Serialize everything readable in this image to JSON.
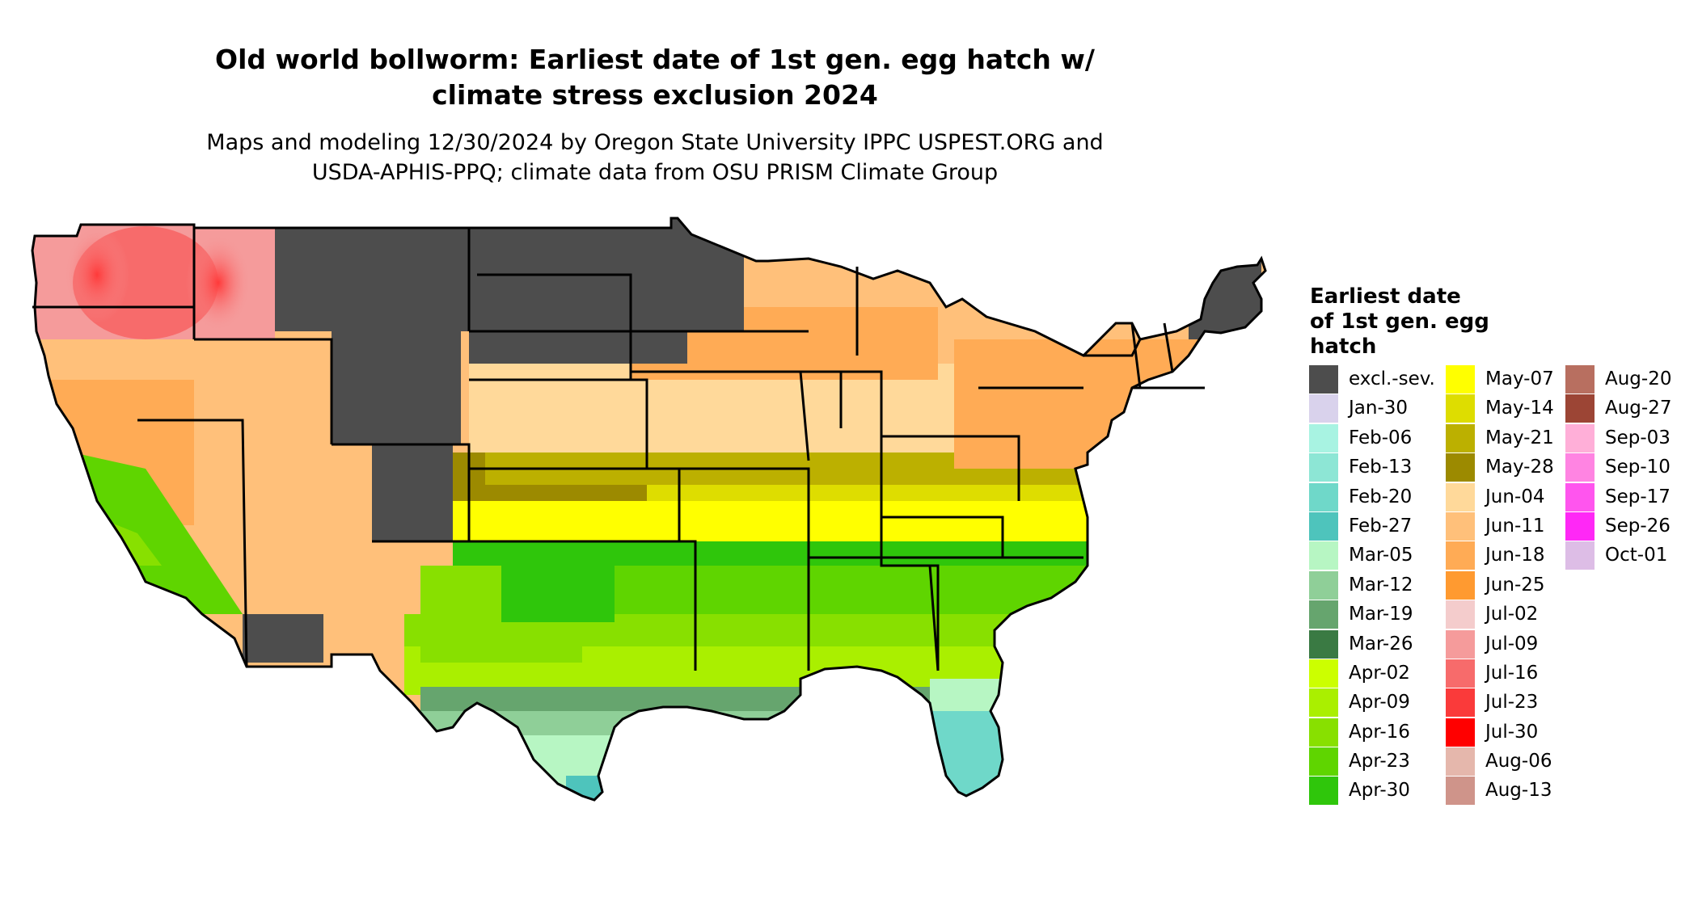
{
  "title_line1": "Old world bollworm: Earliest date of 1st gen. egg hatch w/",
  "title_line2": "climate stress exclusion 2024",
  "subtitle_line1": "Maps and modeling 12/30/2024 by Oregon State University IPPC USPEST.ORG and",
  "subtitle_line2": "USDA-APHIS-PPQ; climate data from OSU PRISM Climate Group",
  "legend": {
    "title_line1": "Earliest date",
    "title_line2": "of 1st gen. egg",
    "title_line3": "hatch",
    "columns": [
      [
        {
          "label": "excl.-sev.",
          "color": "#4d4d4d"
        },
        {
          "label": "Jan-30",
          "color": "#d9d2ec"
        },
        {
          "label": "Feb-06",
          "color": "#a8f3e2"
        },
        {
          "label": "Feb-13",
          "color": "#8de6d5"
        },
        {
          "label": "Feb-20",
          "color": "#6fd8c9"
        },
        {
          "label": "Feb-27",
          "color": "#4ec4bc"
        },
        {
          "label": "Mar-05",
          "color": "#b7f6c3"
        },
        {
          "label": "Mar-12",
          "color": "#8fcf98"
        },
        {
          "label": "Mar-19",
          "color": "#66a56e"
        },
        {
          "label": "Mar-26",
          "color": "#3a7a43"
        },
        {
          "label": "Apr-02",
          "color": "#ccff00"
        },
        {
          "label": "Apr-09",
          "color": "#aaef00"
        },
        {
          "label": "Apr-16",
          "color": "#88e000"
        },
        {
          "label": "Apr-23",
          "color": "#5fd500"
        },
        {
          "label": "Apr-30",
          "color": "#2fc60b"
        }
      ],
      [
        {
          "label": "May-07",
          "color": "#ffff00"
        },
        {
          "label": "May-14",
          "color": "#dedd00"
        },
        {
          "label": "May-21",
          "color": "#bcb000"
        },
        {
          "label": "May-28",
          "color": "#9c8a00"
        },
        {
          "label": "Jun-04",
          "color": "#ffd99a"
        },
        {
          "label": "Jun-11",
          "color": "#ffc07a"
        },
        {
          "label": "Jun-18",
          "color": "#ffab55"
        },
        {
          "label": "Jun-25",
          "color": "#ff9a30"
        },
        {
          "label": "Jul-02",
          "color": "#f4cccc"
        },
        {
          "label": "Jul-09",
          "color": "#f59b9b"
        },
        {
          "label": "Jul-16",
          "color": "#f76b6b"
        },
        {
          "label": "Jul-23",
          "color": "#fa3a3a"
        },
        {
          "label": "Jul-30",
          "color": "#ff0000"
        },
        {
          "label": "Aug-06",
          "color": "#e5b7ac"
        },
        {
          "label": "Aug-13",
          "color": "#cf948a"
        }
      ],
      [
        {
          "label": "Aug-20",
          "color": "#b86f60"
        },
        {
          "label": "Aug-27",
          "color": "#9c4535"
        },
        {
          "label": "Sep-03",
          "color": "#ffafd8"
        },
        {
          "label": "Sep-10",
          "color": "#ff84e2"
        },
        {
          "label": "Sep-17",
          "color": "#ff55ee"
        },
        {
          "label": "Sep-26",
          "color": "#ff28f6"
        },
        {
          "label": "Oct-01",
          "color": "#ddbde6"
        }
      ]
    ]
  }
}
